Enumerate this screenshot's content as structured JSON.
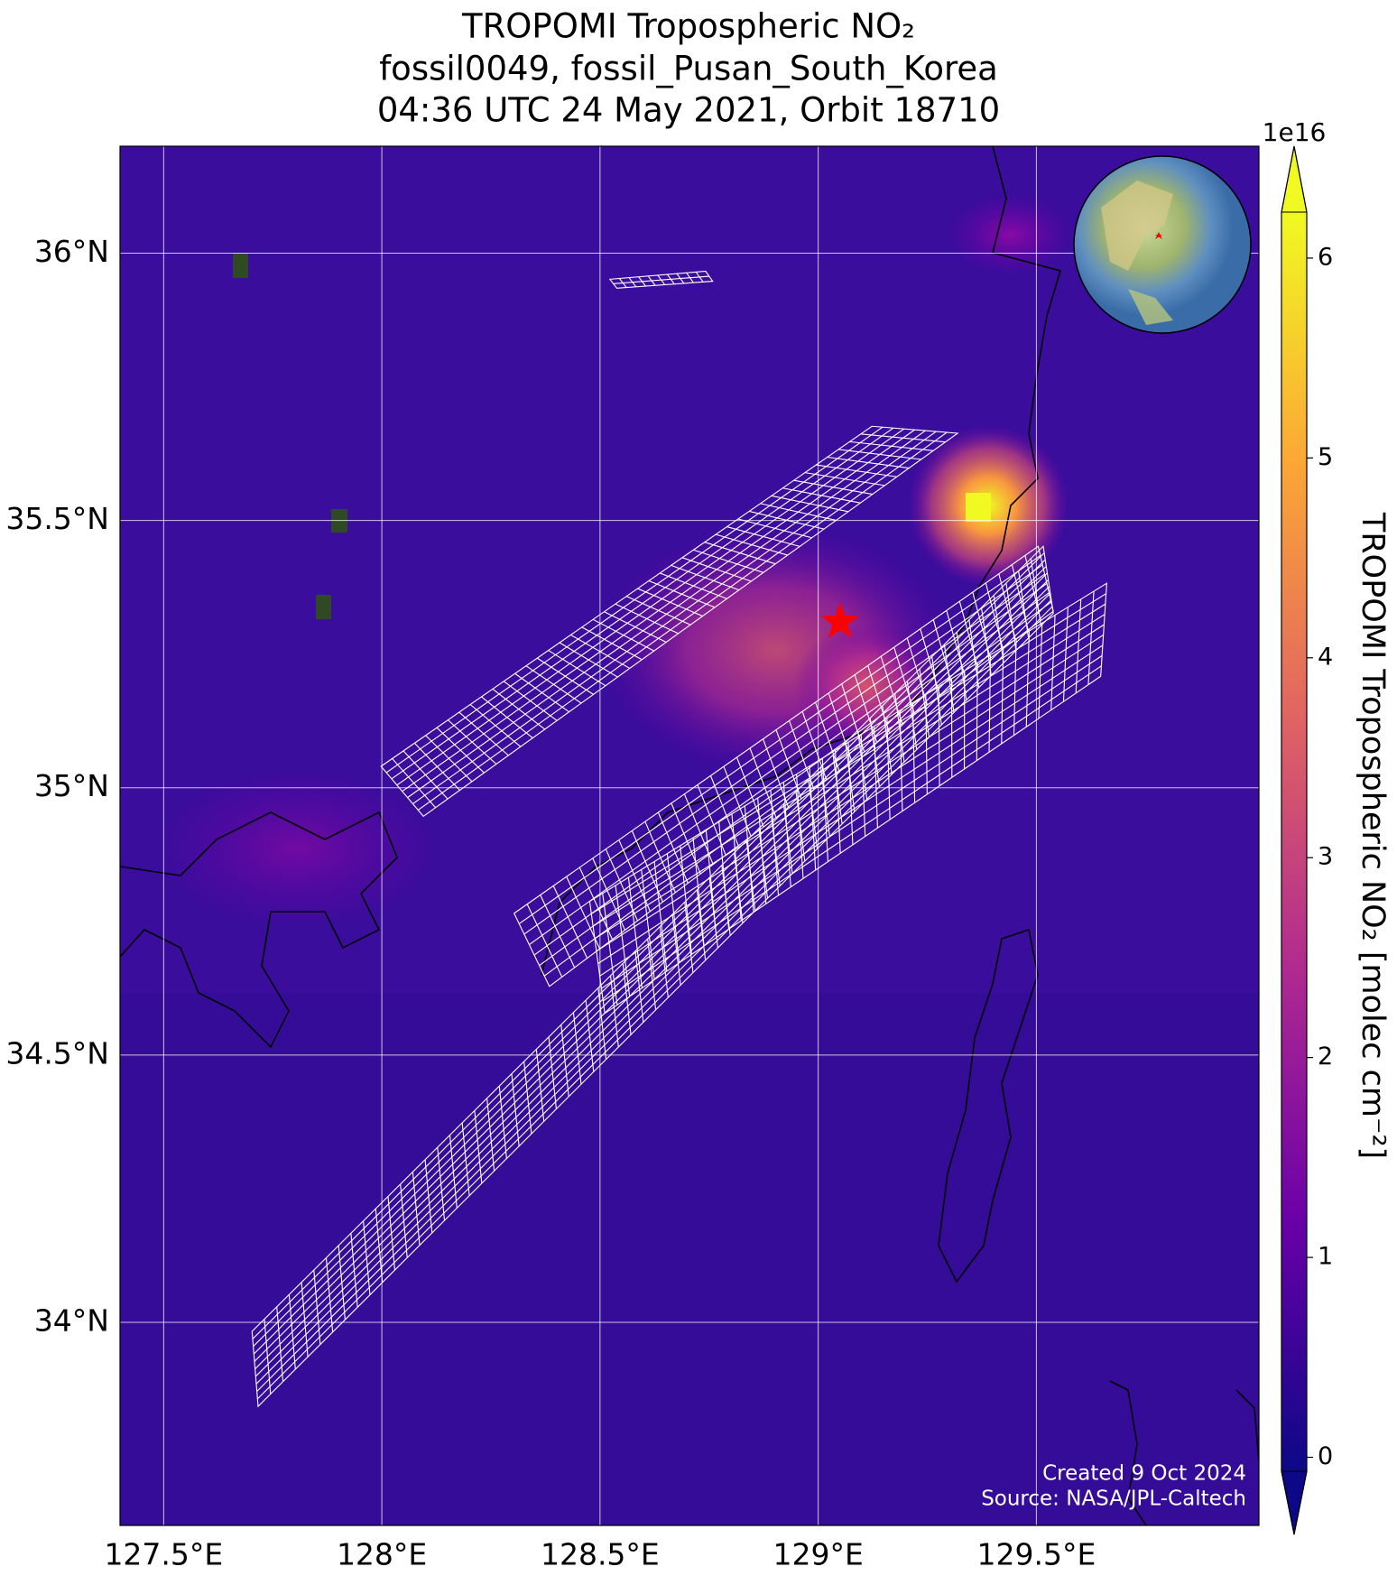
{
  "chart_data": {
    "type": "map",
    "title": [
      "TROPOMI Tropospheric NO₂",
      "fossil0049, fossil_Pusan_South_Korea",
      "04:36 UTC 24 May 2021, Orbit 18710"
    ],
    "xlim": [
      127.4,
      130.01
    ],
    "ylim": [
      33.62,
      36.2
    ],
    "xticks": [
      {
        "value": 127.5,
        "label": "127.5°E"
      },
      {
        "value": 128,
        "label": "128°E"
      },
      {
        "value": 128.5,
        "label": "128.5°E"
      },
      {
        "value": 129,
        "label": "129°E"
      },
      {
        "value": 129.5,
        "label": "129.5°E"
      }
    ],
    "yticks": [
      {
        "value": 34,
        "label": "34°N"
      },
      {
        "value": 34.5,
        "label": "34.5°N"
      },
      {
        "value": 35,
        "label": "35°N"
      },
      {
        "value": 35.5,
        "label": "35.5°N"
      },
      {
        "value": 36,
        "label": "36°N"
      }
    ],
    "grid": true,
    "site": {
      "lon": 129.05,
      "lat": 35.31,
      "color": "#ff0000"
    },
    "colorbar": {
      "label": "TROPOMI Tropospheric NO₂ [molec cm⁻²]",
      "offset_label": "1e16",
      "clim": [
        -0.07,
        6.23
      ],
      "ticks": [
        0,
        1,
        2,
        3,
        4,
        5,
        6
      ],
      "colors": [
        "#0d0887",
        "#6a00a8",
        "#b12a90",
        "#e16462",
        "#fca636",
        "#f0f921"
      ]
    },
    "annotations": [
      "Created 9 Oct 2024",
      "Source: NASA/JPL-Caltech"
    ]
  }
}
